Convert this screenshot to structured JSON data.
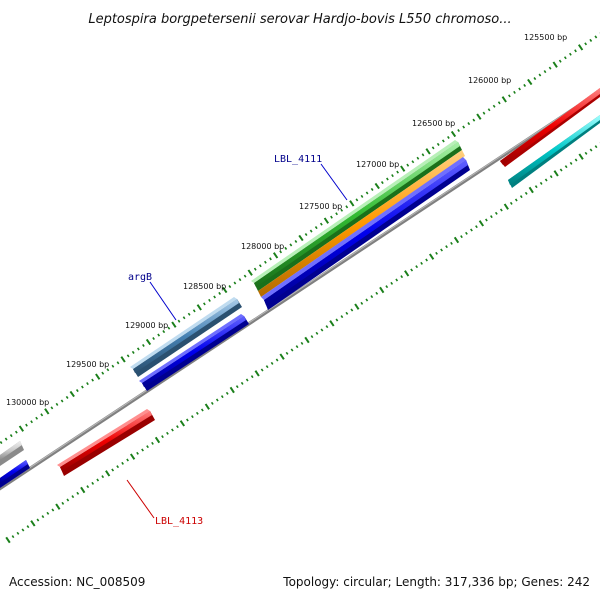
{
  "title": "Leptospira borgpetersenii serovar Hardjo-bovis L550 chromoso...",
  "footer": {
    "accession": "Accession: NC_008509",
    "summary": "Topology: circular; Length: 317,336 bp; Genes: 242"
  },
  "tick_labels": [
    "125500 bp",
    "126000 bp",
    "126500 bp",
    "127000 bp",
    "127500 bp",
    "128000 bp",
    "128500 bp",
    "129000 bp",
    "129500 bp",
    "130000 bp"
  ],
  "gene_labels": {
    "lbl_4111": "LBL_4111",
    "argb": "argB",
    "lbl_4113": "LBL_4113"
  },
  "colors": {
    "backbone": "#808080",
    "tick": "#1a7f1a",
    "label_blue": "#00008b",
    "label_red": "#cc0000",
    "gene_red": "#ee0000",
    "gene_cyan": "#00c8c8",
    "gene_green": "#33bb33",
    "gene_orange": "#ff9900",
    "gene_blue": "#0000ee",
    "gene_steel": "#4682b4",
    "gene_gray": "#c8c8c8"
  }
}
